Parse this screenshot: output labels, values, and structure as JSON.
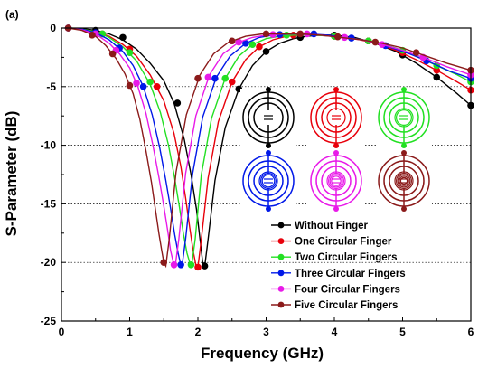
{
  "chart_data": {
    "type": "line",
    "panel_label": "(a)",
    "xlabel": "Frequency (GHz)",
    "ylabel": "S-Parameter (dB)",
    "xlim": [
      0,
      6
    ],
    "ylim": [
      -25,
      0
    ],
    "xticks": [
      0,
      1,
      2,
      3,
      4,
      5,
      6
    ],
    "yticks": [
      0,
      -5,
      -10,
      -15,
      -20,
      -25
    ],
    "grid": "horizontal dotted",
    "legend_position": "bottom-right",
    "series": [
      {
        "name": "Without Finger",
        "color": "#000000",
        "x": [
          0.1,
          0.3,
          0.5,
          0.7,
          0.9,
          1.1,
          1.3,
          1.5,
          1.65,
          1.8,
          1.9,
          1.98,
          2.03,
          2.07,
          2.1,
          2.15,
          2.25,
          2.4,
          2.6,
          2.8,
          3.0,
          3.2,
          3.4,
          3.6,
          3.8,
          4.0,
          4.3,
          4.6,
          4.9,
          5.2,
          5.5,
          5.8,
          6.0
        ],
        "y": [
          0,
          -0.05,
          -0.2,
          -0.5,
          -1.0,
          -1.8,
          -3.0,
          -4.5,
          -6.4,
          -9.5,
          -12.5,
          -15.5,
          -18.0,
          -20.0,
          -20.3,
          -18.0,
          -13.0,
          -8.5,
          -5.2,
          -3.2,
          -2.0,
          -1.3,
          -0.9,
          -0.7,
          -0.6,
          -0.6,
          -0.8,
          -1.3,
          -2.0,
          -3.0,
          -4.2,
          -5.6,
          -6.6
        ],
        "markers_x": [
          0.1,
          0.5,
          0.9,
          1.7,
          2.1,
          2.6,
          3.0,
          3.5,
          4.0,
          4.5,
          5.0,
          5.5,
          6.0
        ],
        "markers_y": [
          0,
          -0.2,
          -0.8,
          -6.4,
          -20.3,
          -5.2,
          -2.0,
          -0.8,
          -0.6,
          -1.1,
          -2.3,
          -4.2,
          -6.6
        ]
      },
      {
        "name": "One Circular Finger",
        "color": "#e8000b",
        "x": [
          0.1,
          0.3,
          0.5,
          0.7,
          0.9,
          1.1,
          1.3,
          1.5,
          1.65,
          1.75,
          1.82,
          1.88,
          1.93,
          1.97,
          2.0,
          2.05,
          2.15,
          2.3,
          2.5,
          2.7,
          2.9,
          3.1,
          3.3,
          3.5,
          3.7,
          4.0,
          4.3,
          4.6,
          4.9,
          5.2,
          5.5,
          5.8,
          6.0
        ],
        "y": [
          0,
          -0.1,
          -0.3,
          -0.7,
          -1.4,
          -2.4,
          -4.0,
          -6.2,
          -9.0,
          -11.8,
          -14.5,
          -17.0,
          -19.0,
          -20.2,
          -20.4,
          -18.0,
          -12.8,
          -8.0,
          -4.6,
          -2.7,
          -1.6,
          -1.0,
          -0.7,
          -0.6,
          -0.6,
          -0.7,
          -0.9,
          -1.3,
          -1.9,
          -2.7,
          -3.6,
          -4.6,
          -5.3
        ],
        "markers_x": [
          0.1,
          0.6,
          1.0,
          1.4,
          2.0,
          2.5,
          2.9,
          3.4,
          4.0,
          4.5,
          5.0,
          5.5,
          6.0
        ],
        "markers_y": [
          0,
          -0.5,
          -1.8,
          -5.0,
          -20.4,
          -4.6,
          -1.6,
          -0.6,
          -0.7,
          -1.1,
          -2.1,
          -3.6,
          -5.3
        ]
      },
      {
        "name": "Two Circular Fingers",
        "color": "#22e022",
        "x": [
          0.1,
          0.3,
          0.5,
          0.7,
          0.9,
          1.1,
          1.3,
          1.45,
          1.57,
          1.66,
          1.73,
          1.79,
          1.84,
          1.88,
          1.91,
          1.96,
          2.05,
          2.2,
          2.4,
          2.6,
          2.8,
          3.0,
          3.2,
          3.4,
          3.7,
          4.0,
          4.3,
          4.6,
          4.9,
          5.2,
          5.5,
          5.8,
          6.0
        ],
        "y": [
          0,
          -0.1,
          -0.3,
          -0.8,
          -1.6,
          -2.8,
          -4.8,
          -7.2,
          -10.0,
          -12.8,
          -15.3,
          -17.6,
          -19.2,
          -20.0,
          -20.2,
          -18.0,
          -12.5,
          -7.7,
          -4.3,
          -2.4,
          -1.4,
          -0.9,
          -0.7,
          -0.6,
          -0.6,
          -0.7,
          -0.9,
          -1.2,
          -1.7,
          -2.4,
          -3.2,
          -4.0,
          -4.6
        ],
        "markers_x": [
          0.1,
          0.6,
          1.0,
          1.3,
          1.9,
          2.4,
          2.8,
          3.3,
          4.0,
          4.5,
          5.0,
          5.5,
          6.0
        ],
        "markers_y": [
          0,
          -0.5,
          -2.1,
          -4.6,
          -20.2,
          -4.3,
          -1.4,
          -0.6,
          -0.7,
          -1.1,
          -1.9,
          -3.2,
          -4.6
        ]
      },
      {
        "name": "Three Circular Fingers",
        "color": "#0018e8",
        "x": [
          0.1,
          0.3,
          0.5,
          0.7,
          0.9,
          1.05,
          1.2,
          1.33,
          1.44,
          1.53,
          1.6,
          1.66,
          1.71,
          1.74,
          1.77,
          1.82,
          1.92,
          2.07,
          2.27,
          2.47,
          2.7,
          2.9,
          3.1,
          3.35,
          3.6,
          3.9,
          4.2,
          4.5,
          4.8,
          5.1,
          5.4,
          5.7,
          6.0
        ],
        "y": [
          0,
          -0.1,
          -0.4,
          -1.0,
          -2.0,
          -3.2,
          -5.0,
          -7.4,
          -10.2,
          -13.0,
          -15.4,
          -17.6,
          -19.2,
          -20.0,
          -20.2,
          -18.0,
          -12.5,
          -7.6,
          -4.2,
          -2.4,
          -1.3,
          -0.8,
          -0.6,
          -0.5,
          -0.5,
          -0.6,
          -0.8,
          -1.1,
          -1.6,
          -2.2,
          -2.9,
          -3.7,
          -4.3
        ],
        "markers_x": [
          0.1,
          0.5,
          0.85,
          1.2,
          1.75,
          2.25,
          2.7,
          3.2,
          3.7,
          4.25,
          4.75,
          5.35,
          6.0
        ],
        "markers_y": [
          0,
          -0.4,
          -1.7,
          -5.0,
          -20.2,
          -4.3,
          -1.3,
          -0.55,
          -0.5,
          -0.85,
          -1.5,
          -2.8,
          -4.3
        ]
      },
      {
        "name": "Four Circular Fingers",
        "color": "#e81ae8",
        "x": [
          0.1,
          0.3,
          0.5,
          0.7,
          0.85,
          1.0,
          1.12,
          1.24,
          1.34,
          1.43,
          1.5,
          1.56,
          1.6,
          1.64,
          1.67,
          1.72,
          1.82,
          1.97,
          2.17,
          2.37,
          2.6,
          2.8,
          3.0,
          3.25,
          3.5,
          3.8,
          4.1,
          4.4,
          4.7,
          5.0,
          5.3,
          5.65,
          6.0
        ],
        "y": [
          0,
          -0.15,
          -0.5,
          -1.3,
          -2.2,
          -3.4,
          -5.0,
          -7.3,
          -10.0,
          -12.8,
          -15.2,
          -17.4,
          -19.0,
          -20.0,
          -20.2,
          -18.0,
          -12.4,
          -7.5,
          -4.0,
          -2.2,
          -1.2,
          -0.8,
          -0.6,
          -0.5,
          -0.5,
          -0.6,
          -0.8,
          -1.0,
          -1.4,
          -1.9,
          -2.5,
          -3.3,
          -4.0
        ],
        "markers_x": [
          0.1,
          0.5,
          0.8,
          1.1,
          1.65,
          2.15,
          2.6,
          3.1,
          3.6,
          4.15,
          4.7,
          5.3,
          6.0
        ],
        "markers_y": [
          0,
          -0.5,
          -1.9,
          -4.7,
          -20.2,
          -4.2,
          -1.2,
          -0.55,
          -0.5,
          -0.8,
          -1.4,
          -2.5,
          -4.0
        ]
      },
      {
        "name": "Five Circular Fingers",
        "color": "#8b1a1a",
        "x": [
          0.1,
          0.3,
          0.5,
          0.65,
          0.8,
          0.93,
          1.05,
          1.15,
          1.24,
          1.32,
          1.38,
          1.43,
          1.47,
          1.5,
          1.53,
          1.58,
          1.68,
          1.83,
          2.03,
          2.23,
          2.45,
          2.7,
          2.95,
          3.2,
          3.5,
          3.8,
          4.1,
          4.4,
          4.7,
          5.0,
          5.3,
          5.65,
          6.0
        ],
        "y": [
          0,
          -0.2,
          -0.7,
          -1.5,
          -2.6,
          -3.9,
          -5.6,
          -7.8,
          -10.5,
          -13.2,
          -15.6,
          -17.6,
          -19.0,
          -20.0,
          -20.3,
          -18.0,
          -12.3,
          -7.4,
          -4.0,
          -2.2,
          -1.2,
          -0.7,
          -0.5,
          -0.5,
          -0.5,
          -0.6,
          -0.8,
          -1.0,
          -1.3,
          -1.7,
          -2.3,
          -3.0,
          -3.6
        ],
        "markers_x": [
          0.1,
          0.45,
          0.75,
          1.0,
          1.5,
          2.0,
          2.5,
          3.0,
          3.5,
          4.05,
          4.6,
          5.2,
          6.0
        ],
        "markers_y": [
          0,
          -0.6,
          -2.2,
          -4.9,
          -20.0,
          -4.3,
          -1.1,
          -0.5,
          -0.5,
          -0.75,
          -1.2,
          -2.1,
          -3.6
        ]
      }
    ]
  },
  "insets": [
    {
      "name": "Without Finger",
      "color": "#000000",
      "rings": 3,
      "fingers": 0
    },
    {
      "name": "One Circular Finger",
      "color": "#e8000b",
      "rings": 3,
      "fingers": 1
    },
    {
      "name": "Two Circular Fingers",
      "color": "#22e022",
      "rings": 3,
      "fingers": 2
    },
    {
      "name": "Three Circular Fingers",
      "color": "#0018e8",
      "rings": 3,
      "fingers": 3
    },
    {
      "name": "Four Circular Fingers",
      "color": "#e81ae8",
      "rings": 3,
      "fingers": 4
    },
    {
      "name": "Five Circular Fingers",
      "color": "#8b1a1a",
      "rings": 3,
      "fingers": 5
    }
  ]
}
